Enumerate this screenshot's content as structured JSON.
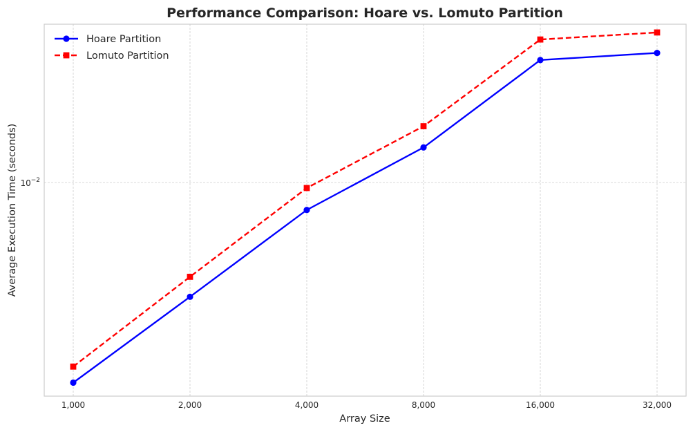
{
  "chart_data": {
    "type": "line",
    "title": "Performance Comparison: Hoare vs. Lomuto Partition",
    "xlabel": "Array Size",
    "ylabel": "Average Execution Time (seconds)",
    "x_scale": "log2",
    "y_scale": "log",
    "x": [
      1000,
      2000,
      4000,
      8000,
      16000,
      32000
    ],
    "x_tick_labels": [
      "1,000",
      "2,000",
      "4,000",
      "8,000",
      "16,000",
      "32,000"
    ],
    "y_tick_labels": [
      {
        "value": 0.01,
        "base": "10",
        "exp": "−2"
      }
    ],
    "ylim": [
      0.00168,
      0.0375
    ],
    "grid": true,
    "legend_position": "top-left",
    "series": [
      {
        "name": "Hoare Partition",
        "color": "#0000ff",
        "line_style": "solid",
        "marker": "circle",
        "values": [
          0.00188,
          0.00385,
          0.00795,
          0.0134,
          0.0278,
          0.0295
        ]
      },
      {
        "name": "Lomuto Partition",
        "color": "#ff0000",
        "line_style": "dashed",
        "marker": "square",
        "values": [
          0.00215,
          0.00455,
          0.00955,
          0.016,
          0.033,
          0.035
        ]
      }
    ]
  }
}
